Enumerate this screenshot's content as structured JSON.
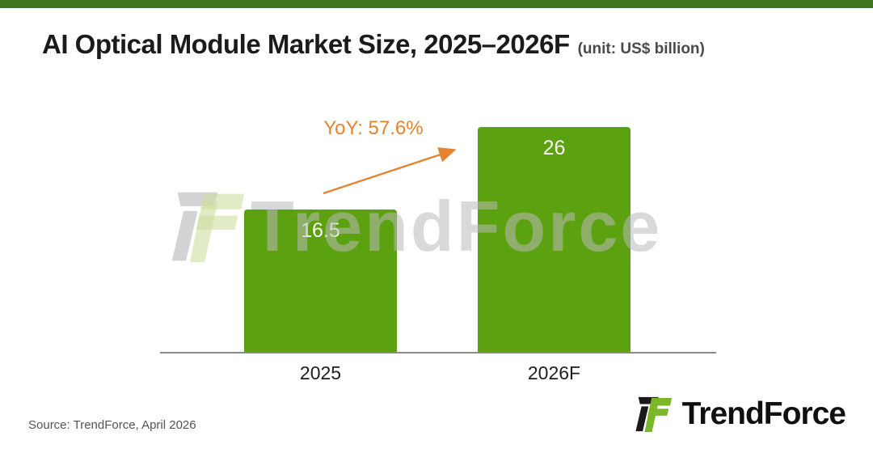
{
  "accent_color": "#3e7520",
  "header": {
    "title": "AI Optical Module Market Size, 2025–2026F",
    "unit": "(unit: US$ billion)"
  },
  "chart_data": {
    "type": "bar",
    "title": "AI Optical Module Market Size, 2025–2026F",
    "unit_label": "US$ billion",
    "categories": [
      "2025",
      "2026F"
    ],
    "values": [
      16.5,
      26
    ],
    "value_labels": [
      "16.5",
      "26"
    ],
    "bar_color": "#5ca10f",
    "ylim": [
      0,
      26
    ],
    "grid": false,
    "legend": false,
    "annotation": {
      "label": "YoY: 57.6%",
      "color": "#e5832f",
      "arrow": "from 2025 bar to 2026F bar, pointing up-right"
    }
  },
  "watermark": {
    "text": "TrendForce"
  },
  "footer": {
    "source": "Source: TrendForce, April 2026",
    "logo_text": "TrendForce"
  }
}
